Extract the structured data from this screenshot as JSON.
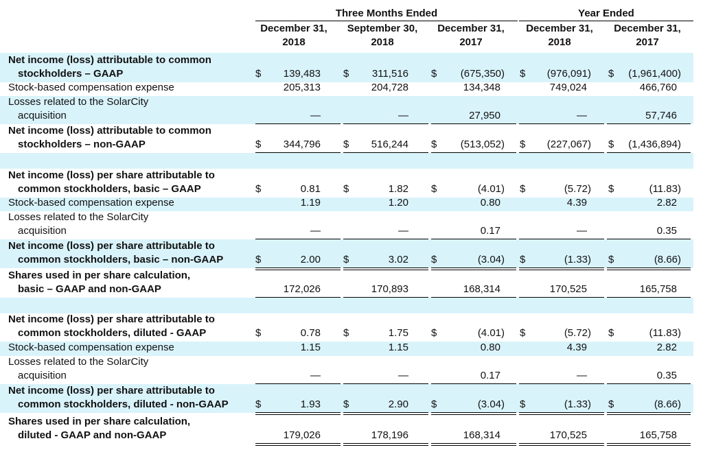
{
  "header": {
    "group_three": "Three Months Ended",
    "group_year": "Year Ended",
    "columns": [
      {
        "l1": "December 31,",
        "l2": "2018"
      },
      {
        "l1": "September 30,",
        "l2": "2018"
      },
      {
        "l1": "December 31,",
        "l2": "2017"
      },
      {
        "l1": "December 31,",
        "l2": "2018"
      },
      {
        "l1": "December 31,",
        "l2": "2017"
      }
    ]
  },
  "rows": [
    {
      "label": [
        "Net income (loss) attributable to common",
        "stockholders – GAAP"
      ],
      "bold": true,
      "shade": true,
      "dollar": true,
      "values": [
        "139,483",
        "311,516",
        "(675,350)",
        "(976,091)",
        "(1,961,400)"
      ],
      "rule": "none"
    },
    {
      "label": [
        "Stock-based compensation expense"
      ],
      "bold": false,
      "shade": false,
      "dollar": false,
      "values": [
        "205,313",
        "204,728",
        "134,348",
        "749,024",
        "466,760"
      ],
      "rule": "none"
    },
    {
      "label": [
        "Losses related to the SolarCity",
        "acquisition"
      ],
      "bold": false,
      "shade": true,
      "dollar": false,
      "indent2": true,
      "values": [
        "—",
        "—",
        "27,950",
        "—",
        "57,746"
      ],
      "rule": "single"
    },
    {
      "label": [
        "Net income (loss) attributable to common",
        "stockholders – non-GAAP"
      ],
      "bold": true,
      "shade": false,
      "dollar": true,
      "values": [
        "344,796",
        "516,244",
        "(513,052)",
        "(227,067)",
        "(1,436,894)"
      ],
      "rule": "double"
    },
    {
      "label": [],
      "bold": false,
      "shade": true,
      "dollar": false,
      "values": [],
      "rule": "none",
      "spacer": true
    },
    {
      "label": [
        "Net income (loss) per share attributable to",
        "common stockholders, basic – GAAP"
      ],
      "bold": true,
      "shade": false,
      "dollar": true,
      "values": [
        "0.81",
        "1.82",
        "(4.01)",
        "(5.72)",
        "(11.83)"
      ],
      "rule": "none"
    },
    {
      "label": [
        "Stock-based compensation expense"
      ],
      "bold": false,
      "shade": true,
      "dollar": false,
      "values": [
        "1.19",
        "1.20",
        "0.80",
        "4.39",
        "2.82"
      ],
      "rule": "none"
    },
    {
      "label": [
        "Losses related to the SolarCity",
        "acquisition"
      ],
      "bold": false,
      "shade": false,
      "dollar": false,
      "indent2": true,
      "values": [
        "—",
        "—",
        "0.17",
        "—",
        "0.35"
      ],
      "rule": "single"
    },
    {
      "label": [
        "Net income (loss) per share attributable to",
        "common stockholders, basic – non-GAAP"
      ],
      "bold": true,
      "shade": true,
      "dollar": true,
      "values": [
        "2.00",
        "3.02",
        "(3.04)",
        "(1.33)",
        "(8.66)"
      ],
      "rule": "double"
    },
    {
      "label": [
        "Shares used in per share calculation,",
        "basic – GAAP and non-GAAP"
      ],
      "bold": true,
      "shade": false,
      "dollar": false,
      "values": [
        "172,026",
        "170,893",
        "168,314",
        "170,525",
        "165,758"
      ],
      "rule": "double"
    },
    {
      "label": [],
      "bold": false,
      "shade": true,
      "dollar": false,
      "values": [],
      "rule": "none",
      "spacer": true
    },
    {
      "label": [
        "Net income (loss) per share attributable to",
        "common stockholders, diluted - GAAP"
      ],
      "bold": true,
      "shade": false,
      "dollar": true,
      "values": [
        "0.78",
        "1.75",
        "(4.01)",
        "(5.72)",
        "(11.83)"
      ],
      "rule": "none"
    },
    {
      "label": [
        "Stock-based compensation expense"
      ],
      "bold": false,
      "shade": true,
      "dollar": false,
      "values": [
        "1.15",
        "1.15",
        "0.80",
        "4.39",
        "2.82"
      ],
      "rule": "none"
    },
    {
      "label": [
        "Losses related to the SolarCity",
        "acquisition"
      ],
      "bold": false,
      "shade": false,
      "dollar": false,
      "indent2": true,
      "values": [
        "—",
        "—",
        "0.17",
        "—",
        "0.35"
      ],
      "rule": "single"
    },
    {
      "label": [
        "Net income (loss) per share attributable to",
        "common stockholders, diluted - non-GAAP"
      ],
      "bold": true,
      "shade": true,
      "dollar": true,
      "values": [
        "1.93",
        "2.90",
        "(3.04)",
        "(1.33)",
        "(8.66)"
      ],
      "rule": "double"
    },
    {
      "label": [
        "Shares used in per share calculation,",
        "diluted - GAAP and non-GAAP"
      ],
      "bold": true,
      "shade": false,
      "dollar": false,
      "values": [
        "179,026",
        "178,196",
        "168,314",
        "170,525",
        "165,758"
      ],
      "rule": "double"
    }
  ]
}
